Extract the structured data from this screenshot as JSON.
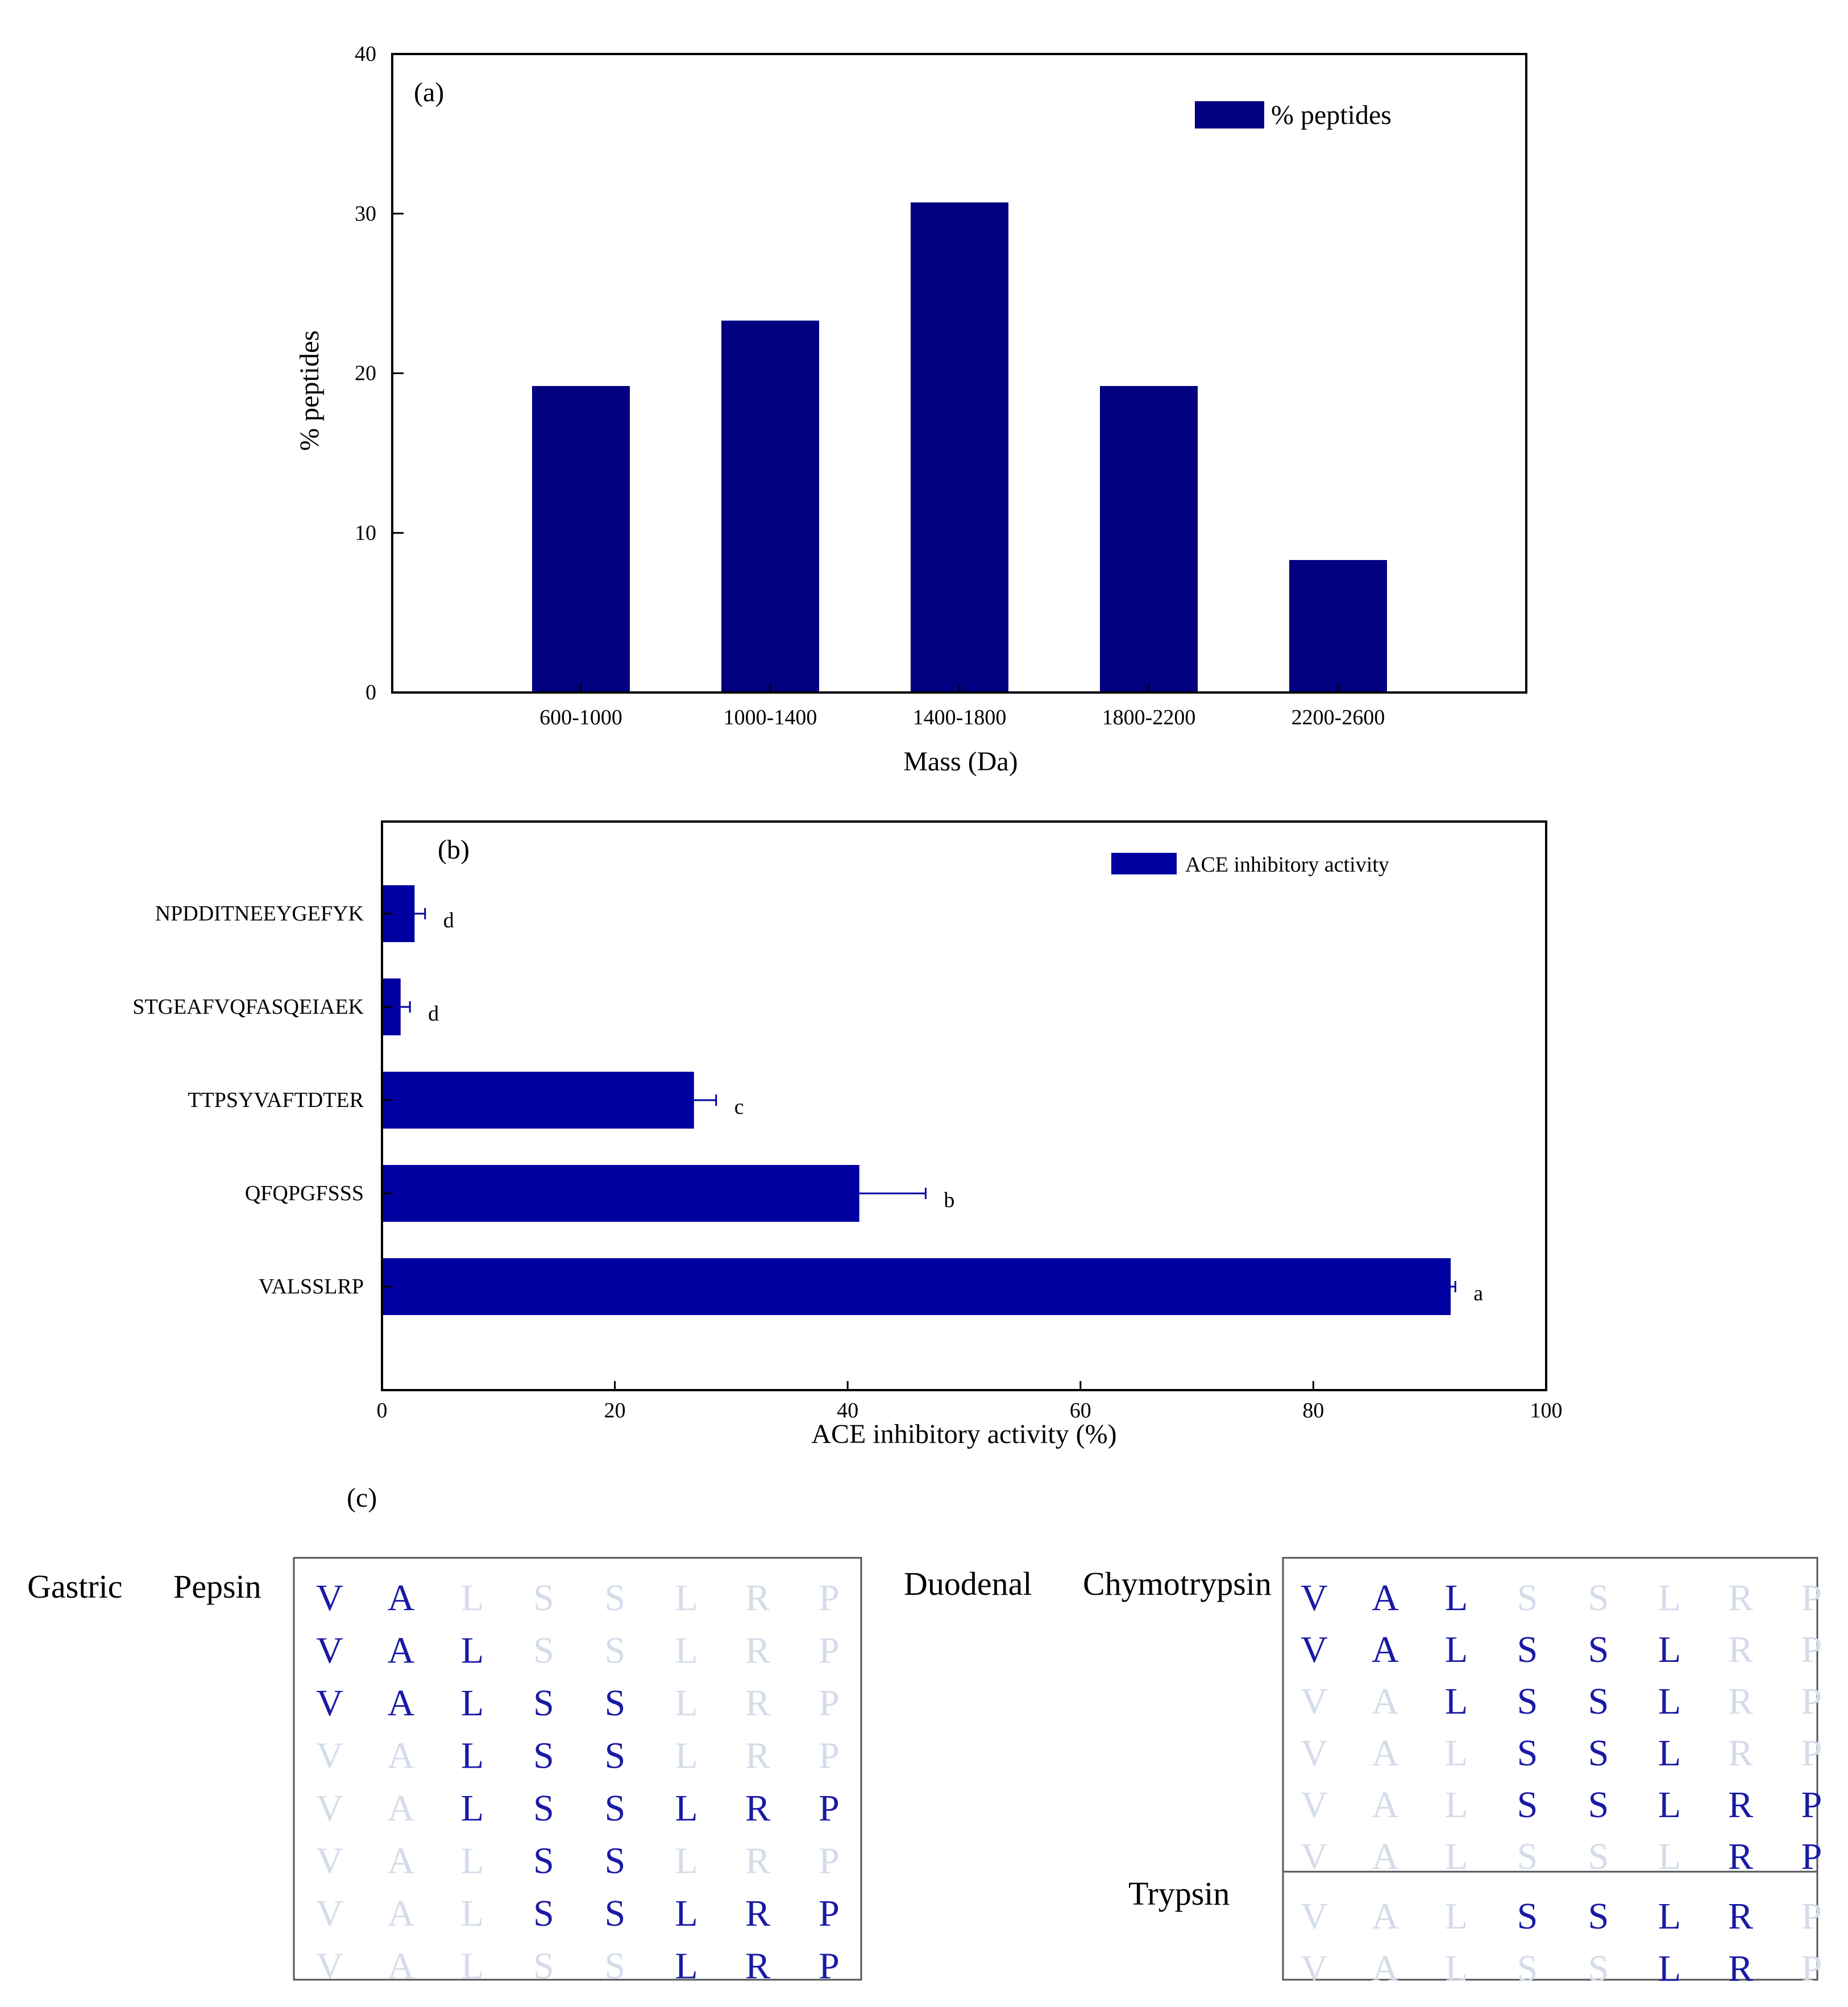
{
  "colors": {
    "bar_a": "#000080",
    "bar_b": "#0000a0",
    "residue_on": "#1a1aa6",
    "residue_off": "#d4dcea",
    "axis": "#000000"
  },
  "chart_data": [
    {
      "type": "bar",
      "panel_label": "(a)",
      "title": "",
      "categories": [
        "600-1000",
        "1000-1400",
        "1400-1800",
        "1800-2200",
        "2200-2600"
      ],
      "series": [
        {
          "name": "% peptides",
          "values": [
            19.2,
            23.3,
            30.7,
            19.2,
            8.3
          ]
        }
      ],
      "xlabel": "Mass (Da)",
      "ylabel": "% peptides",
      "ylim": [
        0,
        40
      ],
      "yticks": [
        "0",
        "10",
        "20",
        "30",
        "40"
      ],
      "legend": "top-right",
      "grid": false
    },
    {
      "type": "bar",
      "orientation": "horizontal",
      "panel_label": "(b)",
      "title": "",
      "categories": [
        "NPDDITNEEYGEFYK",
        "STGEAFVQFASQEIAEK",
        "TTPSYVAFTDTER",
        "QFQPGFSSS",
        "VALSSLRP"
      ],
      "series": [
        {
          "name": "ACE inhibitory activity",
          "values": [
            2.8,
            1.6,
            26.8,
            41.0,
            91.8
          ],
          "errors": [
            0.9,
            0.8,
            1.9,
            5.7,
            0.4
          ],
          "letters": [
            "d",
            "d",
            "c",
            "b",
            "a"
          ]
        }
      ],
      "xlabel": "ACE inhibitory activity (%)",
      "ylabel": "",
      "xlim": [
        0,
        100
      ],
      "xticks": [
        "0",
        "20",
        "40",
        "60",
        "80",
        "100"
      ],
      "legend": "top-right",
      "grid": false
    }
  ],
  "panel_c": {
    "label": "(c)",
    "residues": [
      "V",
      "A",
      "L",
      "S",
      "S",
      "L",
      "R",
      "P"
    ],
    "gastric_label": "Gastric",
    "pepsin_label": "Pepsin",
    "duodenal_label": "Duodenal",
    "chymotrypsin_label": "Chymotrypsin",
    "trypsin_label": "Trypsin",
    "pepsin_rows": [
      [
        1,
        1,
        0,
        0,
        0,
        0,
        0,
        0
      ],
      [
        1,
        1,
        1,
        0,
        0,
        0,
        0,
        0
      ],
      [
        1,
        1,
        1,
        1,
        1,
        0,
        0,
        0
      ],
      [
        0,
        0,
        1,
        1,
        1,
        0,
        0,
        0
      ],
      [
        0,
        0,
        1,
        1,
        1,
        1,
        1,
        1
      ],
      [
        0,
        0,
        0,
        1,
        1,
        0,
        0,
        0
      ],
      [
        0,
        0,
        0,
        1,
        1,
        1,
        1,
        1
      ],
      [
        0,
        0,
        0,
        0,
        0,
        1,
        1,
        1
      ]
    ],
    "chymotrypsin_rows": [
      [
        1,
        1,
        1,
        0,
        0,
        0,
        0,
        0
      ],
      [
        1,
        1,
        1,
        1,
        1,
        1,
        0,
        0
      ],
      [
        0,
        0,
        1,
        1,
        1,
        1,
        0,
        0
      ],
      [
        0,
        0,
        0,
        1,
        1,
        1,
        0,
        0
      ],
      [
        0,
        0,
        0,
        1,
        1,
        1,
        1,
        1
      ],
      [
        0,
        0,
        0,
        0,
        0,
        0,
        1,
        1
      ]
    ],
    "trypsin_rows": [
      [
        0,
        0,
        0,
        1,
        1,
        1,
        1,
        0
      ],
      [
        0,
        0,
        0,
        0,
        0,
        1,
        1,
        0
      ]
    ]
  }
}
